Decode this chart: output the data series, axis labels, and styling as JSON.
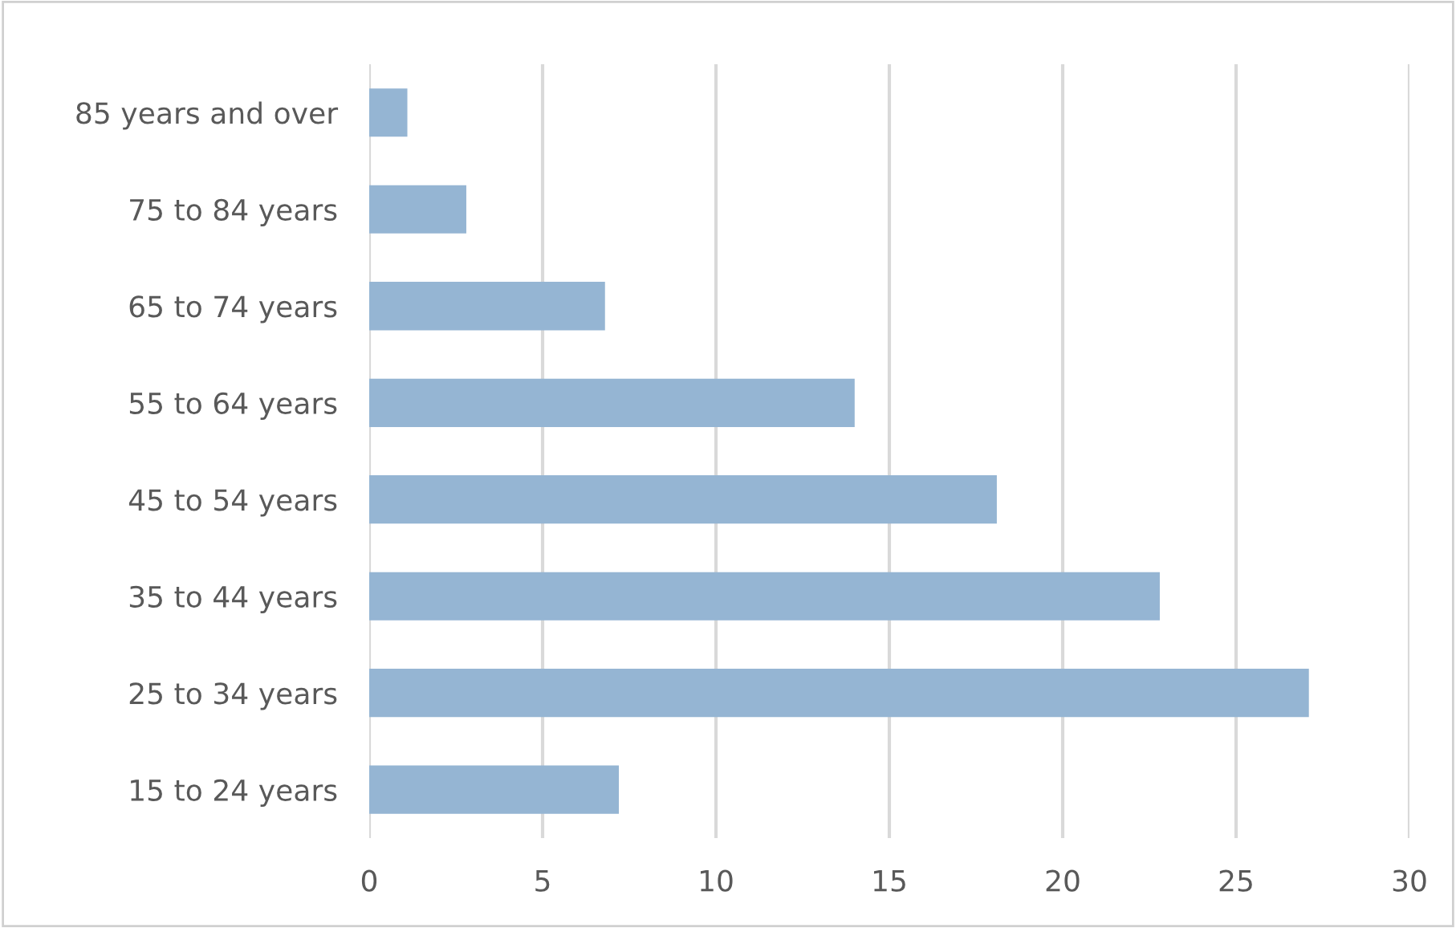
{
  "chart_data": {
    "type": "bar",
    "orientation": "horizontal",
    "categories": [
      "85 years and over",
      "75 to 84 years",
      "65 to 74 years",
      "55 to 64 years",
      "45 to 54 years",
      "35 to 44 years",
      "25 to 34 years",
      "15 to 24 years"
    ],
    "values": [
      1.1,
      2.8,
      6.8,
      14.0,
      18.1,
      22.8,
      27.1,
      7.2
    ],
    "color": "#95b5d3",
    "xlim": [
      0,
      30
    ],
    "xticks": [
      0,
      5,
      10,
      15,
      20,
      25,
      30
    ],
    "grid": "x"
  }
}
